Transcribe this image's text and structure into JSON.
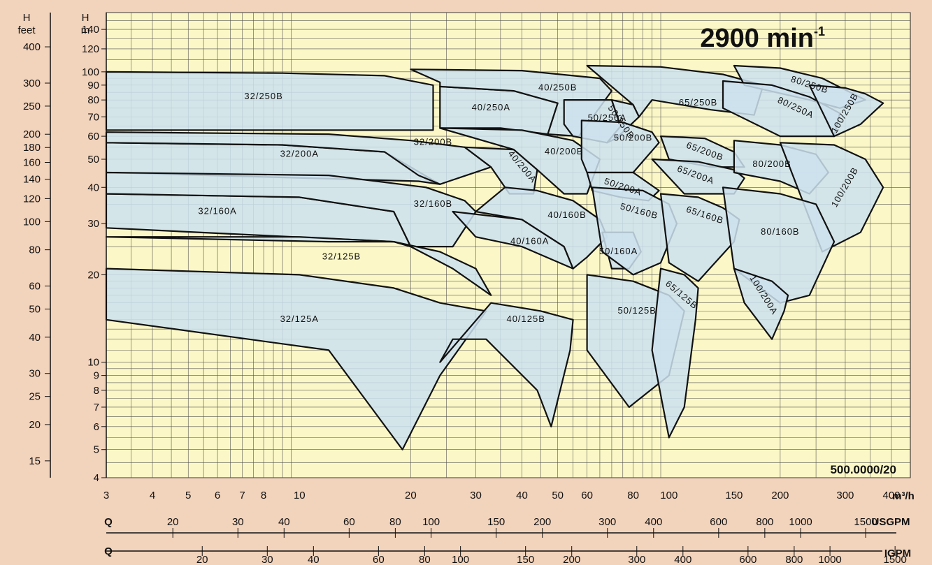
{
  "chart_data": {
    "type": "area",
    "title": "2900 min",
    "title_superscript": "-1",
    "reference": "500.0000/20",
    "x_unit": "m³/h",
    "x_scale": "log",
    "y_scale": "log",
    "xlim": [
      3,
      450
    ],
    "ylim": [
      4,
      160
    ],
    "grid": true,
    "x_ticks": [
      3,
      4,
      5,
      6,
      7,
      8,
      10,
      20,
      30,
      40,
      50,
      60,
      80,
      100,
      150,
      200,
      300,
      400
    ],
    "y_axis_m": {
      "label": "H",
      "unit": "m",
      "ticks": [
        4,
        5,
        6,
        7,
        8,
        9,
        10,
        20,
        30,
        40,
        50,
        60,
        70,
        80,
        90,
        100,
        120,
        140
      ]
    },
    "y_axis_feet": {
      "label": "H",
      "unit": "feet",
      "ticks": [
        15,
        20,
        25,
        30,
        40,
        50,
        60,
        80,
        100,
        120,
        140,
        160,
        180,
        200,
        250,
        300,
        400
      ]
    },
    "q_usgpm": {
      "label": "Q",
      "unit": "USGPM",
      "ticks": [
        20,
        30,
        40,
        60,
        80,
        100,
        150,
        200,
        300,
        400,
        600,
        800,
        1000,
        1500
      ]
    },
    "q_igpm": {
      "label": "Q",
      "unit": "IGPM",
      "ticks": [
        20,
        30,
        40,
        60,
        80,
        100,
        150,
        200,
        300,
        400,
        600,
        800,
        1000,
        1500
      ]
    },
    "zones": [
      {
        "name": "32/250B",
        "x": [
          3,
          9,
          17,
          23,
          23,
          20,
          3
        ],
        "y": [
          100,
          99,
          97,
          90,
          63,
          63,
          63
        ],
        "label_at": [
          8,
          82
        ],
        "rot": 0
      },
      {
        "name": "40/250A",
        "x": [
          24,
          38,
          50,
          47,
          35,
          24
        ],
        "y": [
          89,
          86,
          78,
          61,
          64,
          64
        ],
        "label_at": [
          33,
          75
        ],
        "rot": 0
      },
      {
        "name": "40/250B",
        "x": [
          20,
          40,
          65,
          70,
          57,
          47,
          50,
          38,
          24,
          24
        ],
        "y": [
          102,
          101,
          95,
          86,
          60,
          61,
          78,
          86,
          89,
          92
        ],
        "label_at": [
          50,
          88
        ],
        "rot": 0
      },
      {
        "name": "32/200A",
        "x": [
          3,
          9,
          17,
          24,
          21,
          3
        ],
        "y": [
          57,
          56,
          53,
          41,
          42,
          45
        ],
        "label_at": [
          10,
          52
        ],
        "rot": 0
      },
      {
        "name": "32/200B",
        "x": [
          3,
          12,
          20,
          28,
          33,
          24,
          21,
          17,
          9,
          3
        ],
        "y": [
          62,
          61,
          58,
          55,
          47,
          41,
          44,
          53,
          56,
          57
        ],
        "label_at": [
          23,
          57
        ],
        "rot": 0
      },
      {
        "name": "40/200A",
        "x": [
          28,
          38,
          44,
          43,
          37,
          33
        ],
        "y": [
          55,
          54,
          46,
          38,
          38,
          47
        ],
        "label_at": [
          40,
          47
        ],
        "rot": 50
      },
      {
        "name": "40/200B",
        "x": [
          24,
          40,
          55,
          65,
          60,
          52,
          44,
          38
        ],
        "y": [
          64,
          63,
          58,
          50,
          38,
          38,
          46,
          54
        ],
        "label_at": [
          52,
          53
        ],
        "rot": 0
      },
      {
        "name": "32/160A",
        "x": [
          3,
          10,
          18,
          20,
          18,
          3
        ],
        "y": [
          38,
          37,
          33,
          25,
          26,
          29
        ],
        "label_at": [
          6,
          33
        ],
        "rot": 0
      },
      {
        "name": "32/160B",
        "x": [
          3,
          12,
          22,
          28,
          30,
          26,
          20,
          18,
          10,
          3
        ],
        "y": [
          45,
          44,
          40,
          36,
          33,
          25,
          25,
          33,
          37,
          38
        ],
        "label_at": [
          23,
          35
        ],
        "rot": 0
      },
      {
        "name": "40/160A",
        "x": [
          26,
          40,
          52,
          55,
          40,
          30
        ],
        "y": [
          33,
          31,
          25,
          21,
          25,
          27
        ],
        "label_at": [
          42,
          26
        ],
        "rot": 0
      },
      {
        "name": "40/160B",
        "x": [
          36,
          44,
          55,
          65,
          68,
          60,
          55,
          52,
          40,
          30
        ],
        "y": [
          40,
          39,
          36,
          31,
          27,
          23,
          21,
          25,
          31,
          33
        ],
        "label_at": [
          53,
          32
        ],
        "rot": 0
      },
      {
        "name": "32/125B",
        "x": [
          3,
          10,
          18,
          24,
          30,
          33,
          26,
          20,
          18,
          12,
          3
        ],
        "y": [
          27,
          27,
          26,
          24,
          21,
          17,
          21,
          25,
          26,
          26,
          27
        ],
        "label_at": [
          13,
          23
        ],
        "rot": 0
      },
      {
        "name": "32/125A",
        "x": [
          3,
          10,
          18,
          24,
          32,
          24,
          19,
          12,
          3
        ],
        "y": [
          21,
          20,
          18,
          16,
          15,
          9,
          5,
          11,
          14
        ],
        "label_at": [
          10,
          14
        ],
        "rot": 0
      },
      {
        "name": "40/125B",
        "x": [
          33,
          45,
          55,
          54,
          48,
          44,
          32,
          26,
          24
        ],
        "y": [
          16,
          15,
          14,
          11,
          6,
          8,
          12,
          12,
          10
        ],
        "label_at": [
          41,
          14
        ],
        "rot": 0
      },
      {
        "name": "50/250A",
        "x": [
          52,
          70,
          74,
          68,
          55,
          52
        ],
        "y": [
          80,
          80,
          65,
          57,
          60,
          66
        ],
        "label_at": [
          68,
          69
        ],
        "rot": 0
      },
      {
        "name": "50/250B",
        "x": [
          70,
          80,
          83,
          72,
          68,
          74
        ],
        "y": [
          80,
          77,
          70,
          59,
          57,
          65
        ],
        "label_at": [
          74,
          67
        ],
        "rot": 55
      },
      {
        "name": "65/250B",
        "x": [
          60,
          95,
          140,
          180,
          170,
          130,
          90,
          83,
          80
        ],
        "y": [
          105,
          104,
          98,
          90,
          71,
          74,
          80,
          70,
          77
        ],
        "label_at": [
          120,
          78
        ],
        "rot": 0
      },
      {
        "name": "50/200B",
        "x": [
          58,
          75,
          90,
          94,
          80,
          60,
          58
        ],
        "y": [
          68,
          67,
          62,
          57,
          45,
          45,
          50
        ],
        "label_at": [
          80,
          59
        ],
        "rot": 0
      },
      {
        "name": "50/200A",
        "x": [
          60,
          80,
          94,
          88,
          74,
          62
        ],
        "y": [
          45,
          45,
          39,
          36,
          37,
          39
        ],
        "label_at": [
          75,
          40
        ],
        "rot": 18
      },
      {
        "name": "65/200B",
        "x": [
          95,
          125,
          150,
          160,
          130,
          100
        ],
        "y": [
          60,
          59,
          53,
          47,
          47,
          50
        ],
        "label_at": [
          125,
          53
        ],
        "rot": 20
      },
      {
        "name": "65/200A",
        "x": [
          90,
          120,
          150,
          160,
          150,
          110
        ],
        "y": [
          50,
          49,
          46,
          43,
          38,
          38
        ],
        "label_at": [
          118,
          44
        ],
        "rot": 20
      },
      {
        "name": "50/160A",
        "x": [
          66,
          80,
          84,
          78,
          70
        ],
        "y": [
          28,
          28,
          24,
          21,
          21
        ],
        "label_at": [
          73,
          24
        ],
        "rot": 0
      },
      {
        "name": "50/160B",
        "x": [
          62,
          85,
          100,
          105,
          95,
          80,
          66
        ],
        "y": [
          40,
          39,
          35,
          30,
          22,
          20,
          24
        ],
        "label_at": [
          83,
          33
        ],
        "rot": 15
      },
      {
        "name": "65/160B",
        "x": [
          95,
          120,
          140,
          155,
          150,
          120,
          100
        ],
        "y": [
          38,
          37,
          34,
          31,
          26,
          19,
          22
        ],
        "label_at": [
          125,
          32
        ],
        "rot": 18
      },
      {
        "name": "50/125B",
        "x": [
          60,
          80,
          100,
          110,
          100,
          78,
          60
        ],
        "y": [
          20,
          19,
          17,
          15,
          9,
          7,
          11
        ],
        "label_at": [
          82,
          15
        ],
        "rot": 0
      },
      {
        "name": "65/125B",
        "x": [
          95,
          110,
          120,
          118,
          110,
          100,
          90
        ],
        "y": [
          21,
          20,
          18,
          14,
          7,
          5.5,
          11
        ],
        "label_at": [
          108,
          17
        ],
        "rot": 40
      },
      {
        "name": "80/250B",
        "x": [
          150,
          200,
          260,
          340,
          290,
          240,
          160
        ],
        "y": [
          105,
          103,
          95,
          80,
          75,
          80,
          90
        ],
        "label_at": [
          240,
          90
        ],
        "rot": 18
      },
      {
        "name": "80/250A",
        "x": [
          140,
          190,
          240,
          290,
          280,
          200,
          140
        ],
        "y": [
          93,
          90,
          82,
          72,
          60,
          60,
          75
        ],
        "label_at": [
          220,
          75
        ],
        "rot": 25
      },
      {
        "name": "100/250B",
        "x": [
          240,
          300,
          340,
          380,
          330,
          280
        ],
        "y": [
          90,
          88,
          84,
          78,
          66,
          60
        ],
        "label_at": [
          300,
          72
        ],
        "rot": -60
      },
      {
        "name": "80/200B",
        "x": [
          150,
          200,
          250,
          270,
          240,
          200,
          150
        ],
        "y": [
          58,
          56,
          52,
          45,
          38,
          42,
          45
        ],
        "label_at": [
          190,
          48
        ],
        "rot": 0
      },
      {
        "name": "100/200B",
        "x": [
          200,
          280,
          340,
          380,
          330,
          260
        ],
        "y": [
          57,
          56,
          50,
          40,
          28,
          24
        ],
        "label_at": [
          300,
          40
        ],
        "rot": -60
      },
      {
        "name": "80/160B",
        "x": [
          140,
          200,
          250,
          280,
          240,
          200,
          150
        ],
        "y": [
          40,
          38,
          35,
          26,
          17,
          16,
          21
        ],
        "label_at": [
          200,
          28
        ],
        "rot": 0
      },
      {
        "name": "100/200A",
        "x": [
          150,
          190,
          210,
          205,
          190,
          160
        ],
        "y": [
          21,
          19,
          17,
          15,
          12,
          16
        ],
        "label_at": [
          180,
          17
        ],
        "rot": 58
      }
    ]
  }
}
